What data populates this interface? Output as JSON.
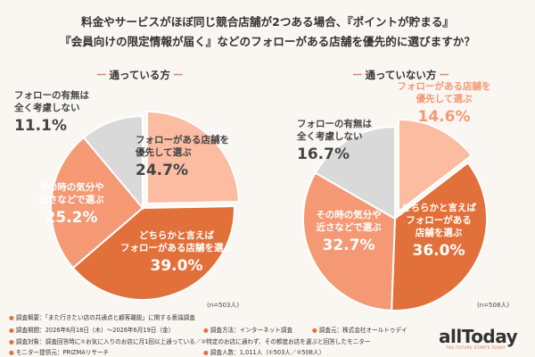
{
  "question": {
    "line1": "料金やサービスがほぼ同じ競合店舗が2つある場合、『ポイントが貯まる』",
    "line2": "『会員向けの限定情報が届く』などのフォローがある店舗を優先的に選びますか？"
  },
  "chart_data": [
    {
      "type": "pie",
      "title": "通っている方",
      "n_label": "(n=503人)",
      "slices": [
        {
          "label_line1": "フォローがある店舗を",
          "label_line2": "優先して選ぶ",
          "value": 24.7,
          "value_label": "24.7%",
          "color": "#fbbca1"
        },
        {
          "label_line1": "どちらかと言えば",
          "label_line2": "フォローがある店舗を選ぶ",
          "value": 39.0,
          "value_label": "39.0%",
          "color": "#e2703a"
        },
        {
          "label_line1": "その時の気分や",
          "label_line2": "近さなどで選ぶ",
          "value": 25.2,
          "value_label": "25.2%",
          "color": "#f59874"
        },
        {
          "label_line1": "フォローの有無は",
          "label_line2": "全く考慮しない",
          "value": 11.1,
          "value_label": "11.1%",
          "color": "#d9d9d9"
        }
      ]
    },
    {
      "type": "pie",
      "title": "通っていない方",
      "n_label": "(n=508人)",
      "slices": [
        {
          "label_line1": "フォローがある店舗を",
          "label_line2": "優先して選ぶ",
          "value": 14.6,
          "value_label": "14.6%",
          "color": "#fbbca1"
        },
        {
          "label_line1": "どちらかと言えば",
          "label_line2": "フォローがある",
          "label_line3": "店舗を選ぶ",
          "value": 36.0,
          "value_label": "36.0%",
          "color": "#e2703a"
        },
        {
          "label_line1": "その時の気分や",
          "label_line2": "近さなどで選ぶ",
          "value": 32.7,
          "value_label": "32.7%",
          "color": "#f59874"
        },
        {
          "label_line1": "フォローの有無は",
          "label_line2": "全く考慮しない",
          "value": 16.7,
          "value_label": "16.7%",
          "color": "#d9d9d9"
        }
      ]
    }
  ],
  "footer": {
    "overview": "調査概要：「また行きたい店の共通点と顧客離脱」に関する意識調査",
    "period": "調査期間：2026年6月18日（木）～2026年6月19日（金）",
    "method": "調査方法：インターネット調査",
    "by": "調査元：株式会社オールトゥデイ",
    "target": "調査対象：調査回答時に①お気に入りのお店に月1回以上通っている／②特定のお店に通わず、その都度お店を選ぶと回答したモニター",
    "provider": "モニター提供元：PRIZMAリサーチ",
    "count": "調査人数：1,011人（①503人／②508人）"
  },
  "logo": {
    "word": "allToday",
    "tagline": "THE FUTURE STARTS TODAY"
  }
}
